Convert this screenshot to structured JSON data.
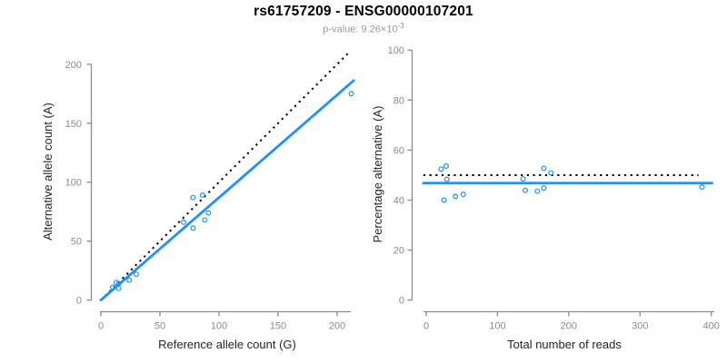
{
  "header": {
    "title": "rs61757209 - ENSG00000107201",
    "subtitle_prefix": "p-value: 9.26×10",
    "subtitle_exponent": "-3"
  },
  "colors": {
    "accent_blue": "#1E90FF",
    "axis_gray": "#8C8C8C",
    "tick_label_gray": "#8C8C8C",
    "axis_title_dark": "#262626",
    "subtitle_gray": "#999999",
    "line_black": "#000000",
    "background": "#FFFFFF"
  },
  "chart_data": [
    {
      "type": "scatter",
      "panel": "left",
      "xlabel": "Reference allele count (G)",
      "ylabel": "Alternative allele count (A)",
      "xlim": [
        0,
        210
      ],
      "ylim": [
        0,
        210
      ],
      "xticks": [
        0,
        50,
        100,
        150,
        200
      ],
      "yticks": [
        0,
        50,
        100,
        150,
        200
      ],
      "grid": false,
      "legend": "none",
      "marker": "open-circle",
      "points": [
        [
          10,
          11
        ],
        [
          13,
          15
        ],
        [
          15,
          14
        ],
        [
          15,
          10
        ],
        [
          24,
          17
        ],
        [
          30,
          22
        ],
        [
          70,
          66
        ],
        [
          78,
          61
        ],
        [
          78,
          87
        ],
        [
          86,
          89
        ],
        [
          88,
          68
        ],
        [
          91,
          74
        ],
        [
          212,
          175
        ]
      ],
      "lines": [
        {
          "name": "identity-line",
          "style": "dotted",
          "color": "#000000",
          "slope": 1,
          "intercept": 0,
          "xrange": [
            0,
            209.5
          ]
        },
        {
          "name": "fit-line",
          "style": "solid",
          "color": "#1E90FF",
          "slope": 0.87,
          "intercept": 0,
          "xrange": [
            0,
            214
          ]
        }
      ]
    },
    {
      "type": "scatter",
      "panel": "right",
      "xlabel": "Total number of reads",
      "ylabel": "Percentage alternative (A)",
      "xlim": [
        0,
        400
      ],
      "ylim": [
        0,
        100
      ],
      "xticks": [
        0,
        100,
        200,
        300,
        400
      ],
      "yticks": [
        0,
        20,
        40,
        60,
        80,
        100
      ],
      "grid": false,
      "legend": "none",
      "marker": "open-circle",
      "points": [
        [
          21,
          52.4
        ],
        [
          28,
          53.6
        ],
        [
          29,
          48.3
        ],
        [
          25,
          40.0
        ],
        [
          41,
          41.5
        ],
        [
          52,
          42.3
        ],
        [
          136,
          48.5
        ],
        [
          139,
          43.9
        ],
        [
          156,
          43.6
        ],
        [
          165,
          52.7
        ],
        [
          175,
          50.9
        ],
        [
          165,
          44.8
        ],
        [
          387,
          45.2
        ]
      ],
      "lines": [
        {
          "name": "expected-line",
          "style": "dotted",
          "color": "#000000",
          "slope": 0,
          "intercept": 50,
          "xrange": [
            -4,
            382
          ]
        },
        {
          "name": "mean-line",
          "style": "solid",
          "color": "#1E90FF",
          "slope": 0,
          "intercept": 46.8,
          "xrange": [
            -4,
            401
          ]
        }
      ]
    }
  ]
}
